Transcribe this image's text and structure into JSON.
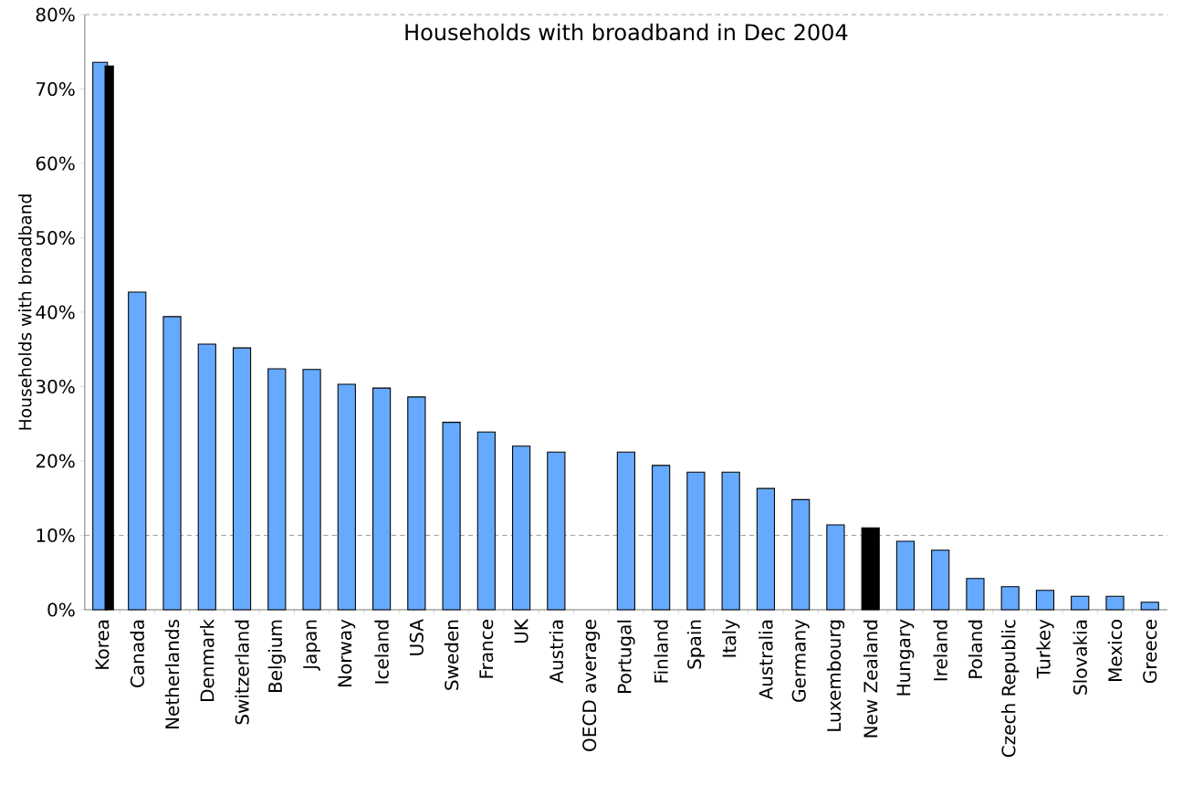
{
  "chart_data": {
    "type": "bar",
    "title": "Households with broadband in Dec 2004",
    "ylabel": "Households with broadband",
    "categories": [
      "Korea",
      "Canada",
      "Netherlands",
      "Denmark",
      "Switzerland",
      "Belgium",
      "Japan",
      "Norway",
      "Iceland",
      "USA",
      "Sweden",
      "France",
      "UK",
      "Austria",
      "OECD average",
      "Portugal",
      "Finland",
      "Spain",
      "Italy",
      "Australia",
      "Germany",
      "Luxembourg",
      "New Zealand",
      "Hungary",
      "Ireland",
      "Poland",
      "Czech Republic",
      "Turkey",
      "Slovakia",
      "Mexico",
      "Greece"
    ],
    "series": [
      {
        "color": "#66aaff",
        "values": [
          73.6,
          42.7,
          39.4,
          35.7,
          35.2,
          32.4,
          32.3,
          30.3,
          29.8,
          28.6,
          25.2,
          23.9,
          22.0,
          21.2,
          null,
          21.2,
          19.4,
          18.5,
          18.5,
          16.3,
          14.8,
          11.4,
          null,
          9.2,
          8.0,
          4.2,
          3.1,
          2.6,
          1.8,
          1.8,
          1.0
        ]
      },
      {
        "color": "#000000",
        "values": [
          73.1,
          null,
          null,
          null,
          null,
          null,
          null,
          null,
          null,
          null,
          null,
          null,
          null,
          null,
          null,
          null,
          null,
          null,
          null,
          null,
          null,
          null,
          11.0,
          null,
          null,
          null,
          null,
          null,
          null,
          null,
          null
        ]
      }
    ],
    "ylim": [
      0,
      80
    ],
    "yticks": [
      {
        "value": 0,
        "label": "0%"
      },
      {
        "value": 10,
        "label": "10%"
      },
      {
        "value": 20,
        "label": "20%"
      },
      {
        "value": 30,
        "label": "30%"
      },
      {
        "value": 40,
        "label": "40%"
      },
      {
        "value": 50,
        "label": "50%"
      },
      {
        "value": 60,
        "label": "60%"
      },
      {
        "value": 70,
        "label": "70%"
      },
      {
        "value": 80,
        "label": "80%"
      }
    ],
    "ref_lines": [
      {
        "axis": "y",
        "value": 10,
        "color": "#a0a0a0",
        "line_style": "dashed"
      }
    ]
  }
}
